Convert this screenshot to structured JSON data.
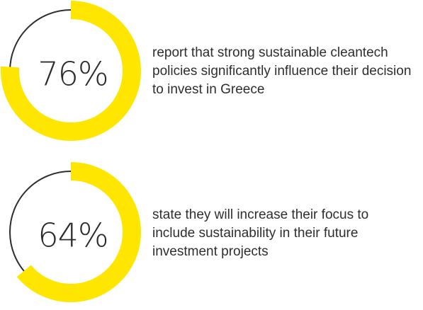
{
  "chart_data": [
    {
      "type": "pie",
      "values": [
        76,
        24
      ],
      "center_label": "76%",
      "description": "report that strong sustainable cleantech policies significantly influence their decision to invest in Greece"
    },
    {
      "type": "pie",
      "values": [
        64,
        36
      ],
      "center_label": "64%",
      "description": "state they will increase their focus to include sustainability in their future investment projects"
    }
  ],
  "colors": {
    "accent": "#FFE600",
    "ring": "#2e2e2e",
    "text": "#2e2e2e"
  }
}
